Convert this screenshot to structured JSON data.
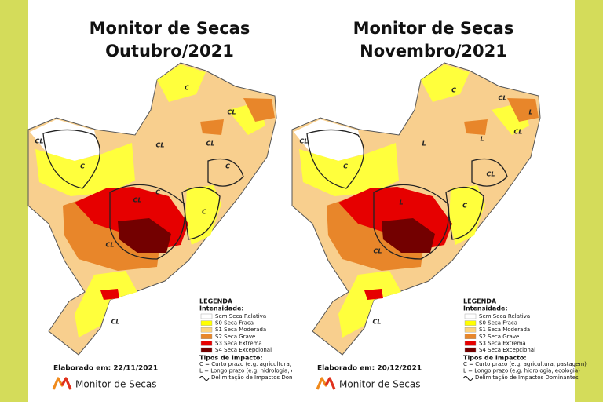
{
  "panels": [
    {
      "title": "Monitor de Secas",
      "subtitle": "Outubro/2021",
      "map_labels": [
        "C",
        "CL",
        "CL",
        "C",
        "CL",
        "CL",
        "C",
        "CL",
        "C",
        "C",
        "CL",
        "CL"
      ],
      "legend": {
        "title": "LEGENDA",
        "intensity_label": "Intensidade:",
        "items": [
          {
            "label": "Sem Seca Relativa",
            "color": "#ffffff"
          },
          {
            "label": "S0 Seca Fraca",
            "color": "#ffff00"
          },
          {
            "label": "S1 Seca Moderada",
            "color": "#fcd37f"
          },
          {
            "label": "S2 Seca Grave",
            "color": "#e8862a"
          },
          {
            "label": "S3 Seca Extrema",
            "color": "#e60000"
          },
          {
            "label": "S4 Seca Excepcional",
            "color": "#730000"
          }
        ],
        "impact_title": "Tipos de Impacto:",
        "impact_items": [
          "C = Curto prazo (e.g. agricultura, pastagem)",
          "L = Longo prazo (e.g. hidrologia, ecologia)",
          "Delimitação de Impactos Dominantes"
        ]
      },
      "elaborated": "Elaborado em: 22/11/2021",
      "logo_text": "Monitor de Secas"
    },
    {
      "title": "Monitor de Secas",
      "subtitle": "Novembro/2021",
      "map_labels": [
        "C",
        "CL",
        "L",
        "CL",
        "CL",
        "C",
        "L",
        "L",
        "CL",
        "C",
        "L",
        "CL",
        "CL"
      ],
      "legend": {
        "title": "LEGENDA",
        "intensity_label": "Intensidade:",
        "items": [
          {
            "label": "Sem Seca Relativa",
            "color": "#ffffff"
          },
          {
            "label": "S0 Seca Fraca",
            "color": "#ffff00"
          },
          {
            "label": "S1 Seca Moderada",
            "color": "#fcd37f"
          },
          {
            "label": "S2 Seca Grave",
            "color": "#e8862a"
          },
          {
            "label": "S3 Seca Extrema",
            "color": "#e60000"
          },
          {
            "label": "S4 Seca Excepcional",
            "color": "#730000"
          }
        ],
        "impact_title": "Tipos de Impacto:",
        "impact_items": [
          "C = Curto prazo (e.g. agricultura, pastagem)",
          "L = Longo prazo (e.g. hidrologia, ecologia)",
          "Delimitação de Impactos Dominantes"
        ]
      },
      "elaborated": "Elaborado em: 20/12/2021",
      "logo_text": "Monitor de Secas"
    }
  ]
}
